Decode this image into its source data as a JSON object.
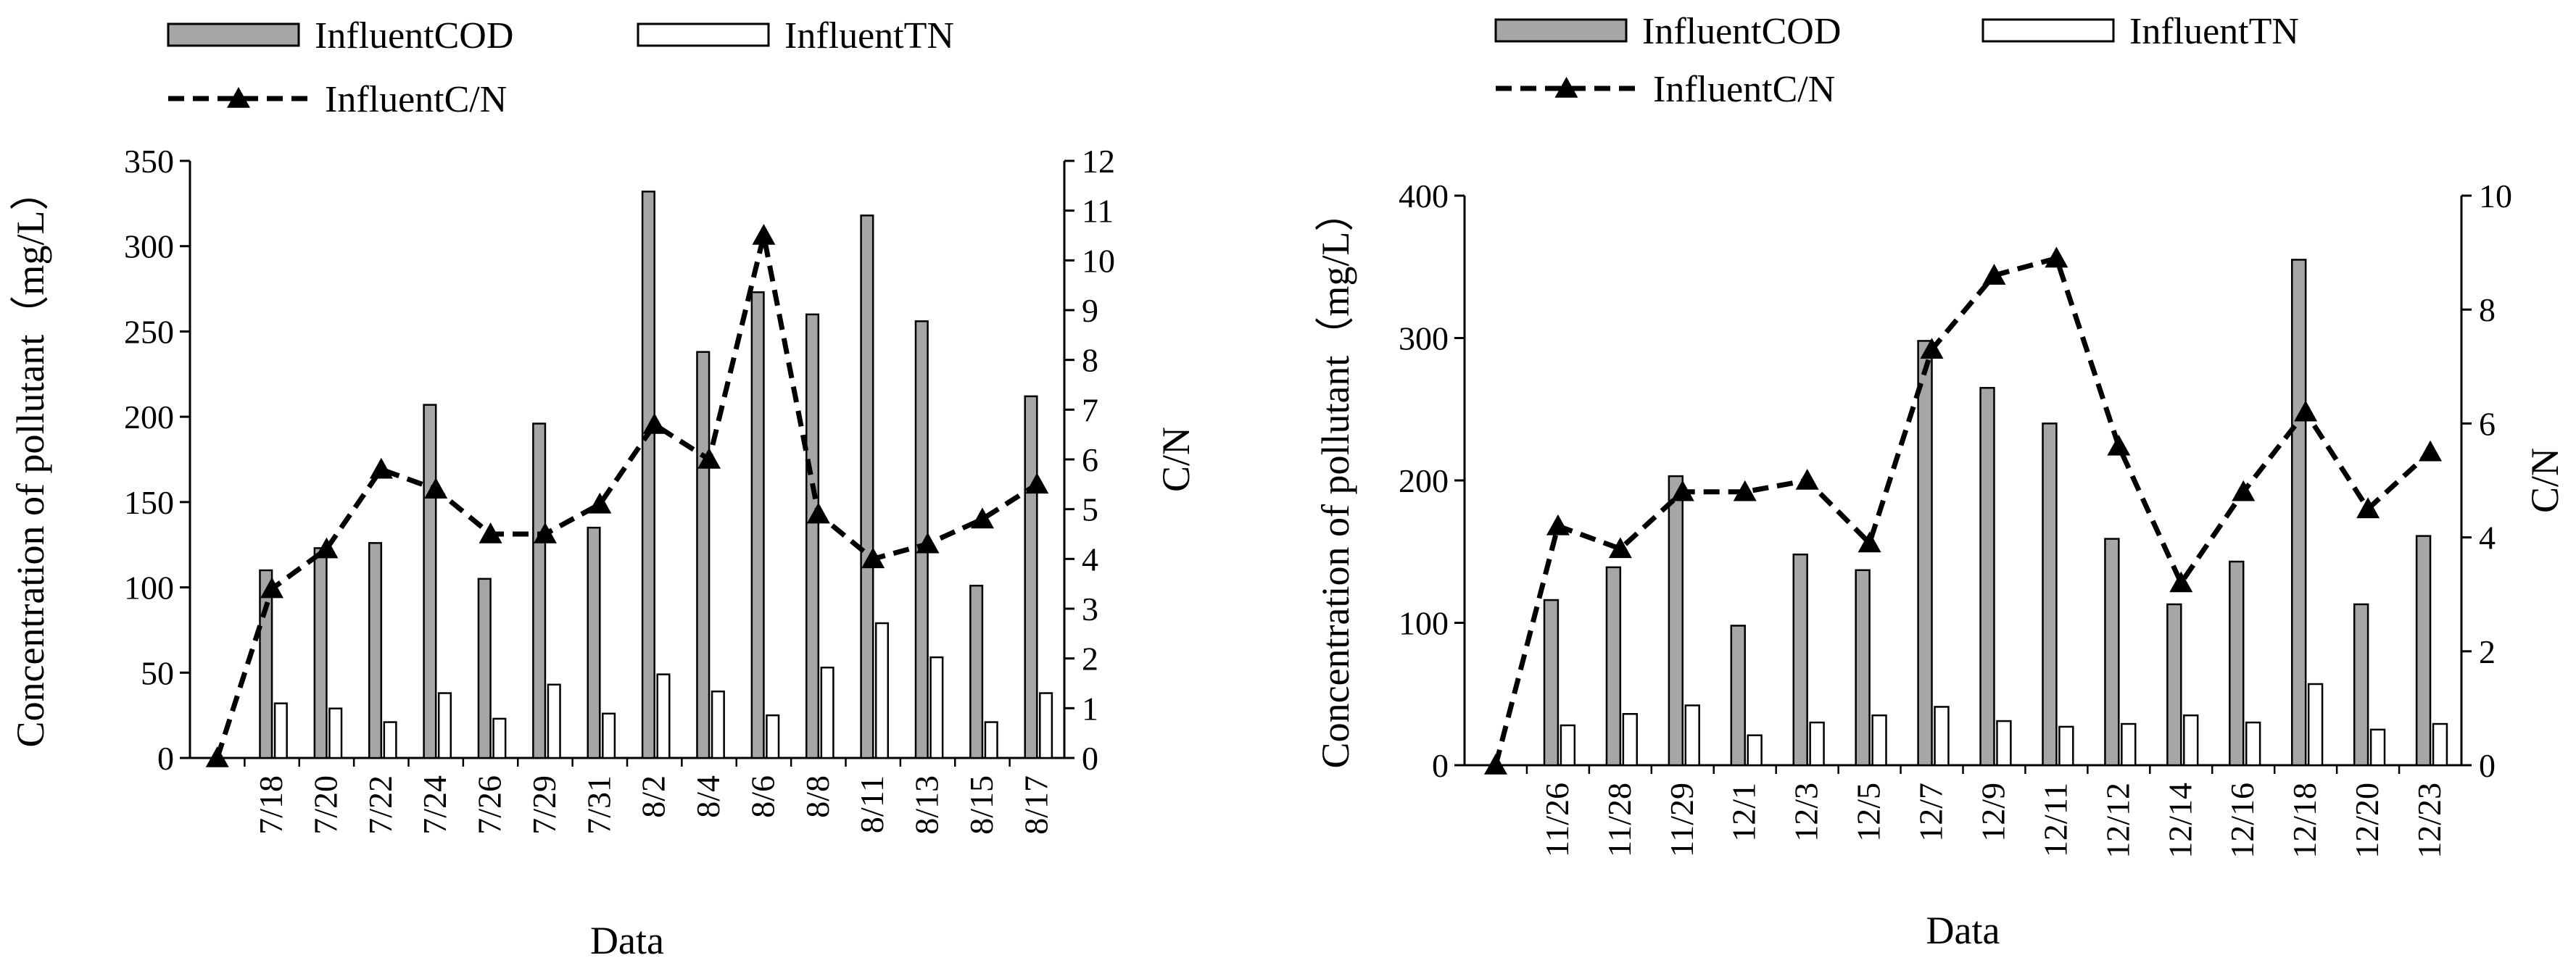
{
  "chart_data": [
    {
      "type": "bar+line",
      "title": "",
      "xlabel": "Data",
      "ylabel": "Concentration of pollutant（mg/L）",
      "y2label": "C/N",
      "ylim": [
        0,
        350
      ],
      "yticks": [
        0,
        50,
        100,
        150,
        200,
        250,
        300,
        350
      ],
      "y2lim": [
        0,
        12
      ],
      "y2ticks": [
        0,
        1,
        2,
        3,
        4,
        5,
        6,
        7,
        8,
        9,
        10,
        11,
        12
      ],
      "categories": [
        "7/18",
        "7/20",
        "7/22",
        "7/24",
        "7/26",
        "7/29",
        "7/31",
        "8/2",
        "8/4",
        "8/6",
        "8/8",
        "8/11",
        "8/13",
        "8/15",
        "8/17"
      ],
      "series": [
        {
          "name": "InfluentCOD",
          "kind": "bar",
          "color": "#a6a6a6",
          "values": [
            110,
            123,
            126,
            207,
            105,
            196,
            135,
            332,
            238,
            273,
            260,
            318,
            256,
            101,
            212
          ]
        },
        {
          "name": "InfluentTN",
          "kind": "bar",
          "color": "#ffffff",
          "values": [
            32,
            29,
            21,
            38,
            23,
            43,
            26,
            49,
            39,
            25,
            53,
            79,
            59,
            21,
            38
          ]
        },
        {
          "name": "InfluentC/N",
          "kind": "line",
          "axis": "right",
          "color": "#000000",
          "start": 0,
          "values": [
            3.4,
            4.2,
            5.8,
            5.4,
            4.5,
            4.5,
            5.1,
            6.7,
            6.0,
            10.5,
            4.9,
            4.0,
            4.3,
            4.8,
            5.5
          ]
        }
      ],
      "legend": {
        "position": "top-left",
        "labels": [
          "InfluentCOD",
          "InfluentTN",
          "InfluentC/N"
        ]
      }
    },
    {
      "type": "bar+line",
      "title": "",
      "xlabel": "Data",
      "ylabel": "Concentration of pollutant（mg/L）",
      "y2label": "C/N",
      "ylim": [
        0,
        400
      ],
      "yticks": [
        0,
        100,
        200,
        300,
        400
      ],
      "y2lim": [
        0,
        10
      ],
      "y2ticks": [
        0,
        2,
        4,
        6,
        8,
        10
      ],
      "categories": [
        "11/26",
        "11/28",
        "11/29",
        "12/1",
        "12/3",
        "12/5",
        "12/7",
        "12/9",
        "12/11",
        "12/12",
        "12/14",
        "12/16",
        "12/18",
        "12/20",
        "12/23"
      ],
      "series": [
        {
          "name": "InfluentCOD",
          "kind": "bar",
          "color": "#a6a6a6",
          "values": [
            116,
            139,
            203,
            98,
            148,
            137,
            298,
            265,
            240,
            159,
            113,
            143,
            355,
            113,
            161
          ]
        },
        {
          "name": "InfluentTN",
          "kind": "bar",
          "color": "#ffffff",
          "values": [
            28,
            36,
            42,
            21,
            30,
            35,
            41,
            31,
            27,
            29,
            35,
            30,
            57,
            25,
            29
          ]
        },
        {
          "name": "InfluentC/N",
          "kind": "line",
          "axis": "right",
          "color": "#000000",
          "start": 0,
          "values": [
            4.2,
            3.8,
            4.8,
            4.8,
            5.0,
            3.9,
            7.3,
            8.6,
            8.9,
            5.6,
            3.2,
            4.8,
            6.2,
            4.5,
            5.5
          ]
        }
      ],
      "legend": {
        "position": "top-left",
        "labels": [
          "InfluentCOD",
          "InfluentTN",
          "InfluentC/N"
        ]
      }
    }
  ]
}
